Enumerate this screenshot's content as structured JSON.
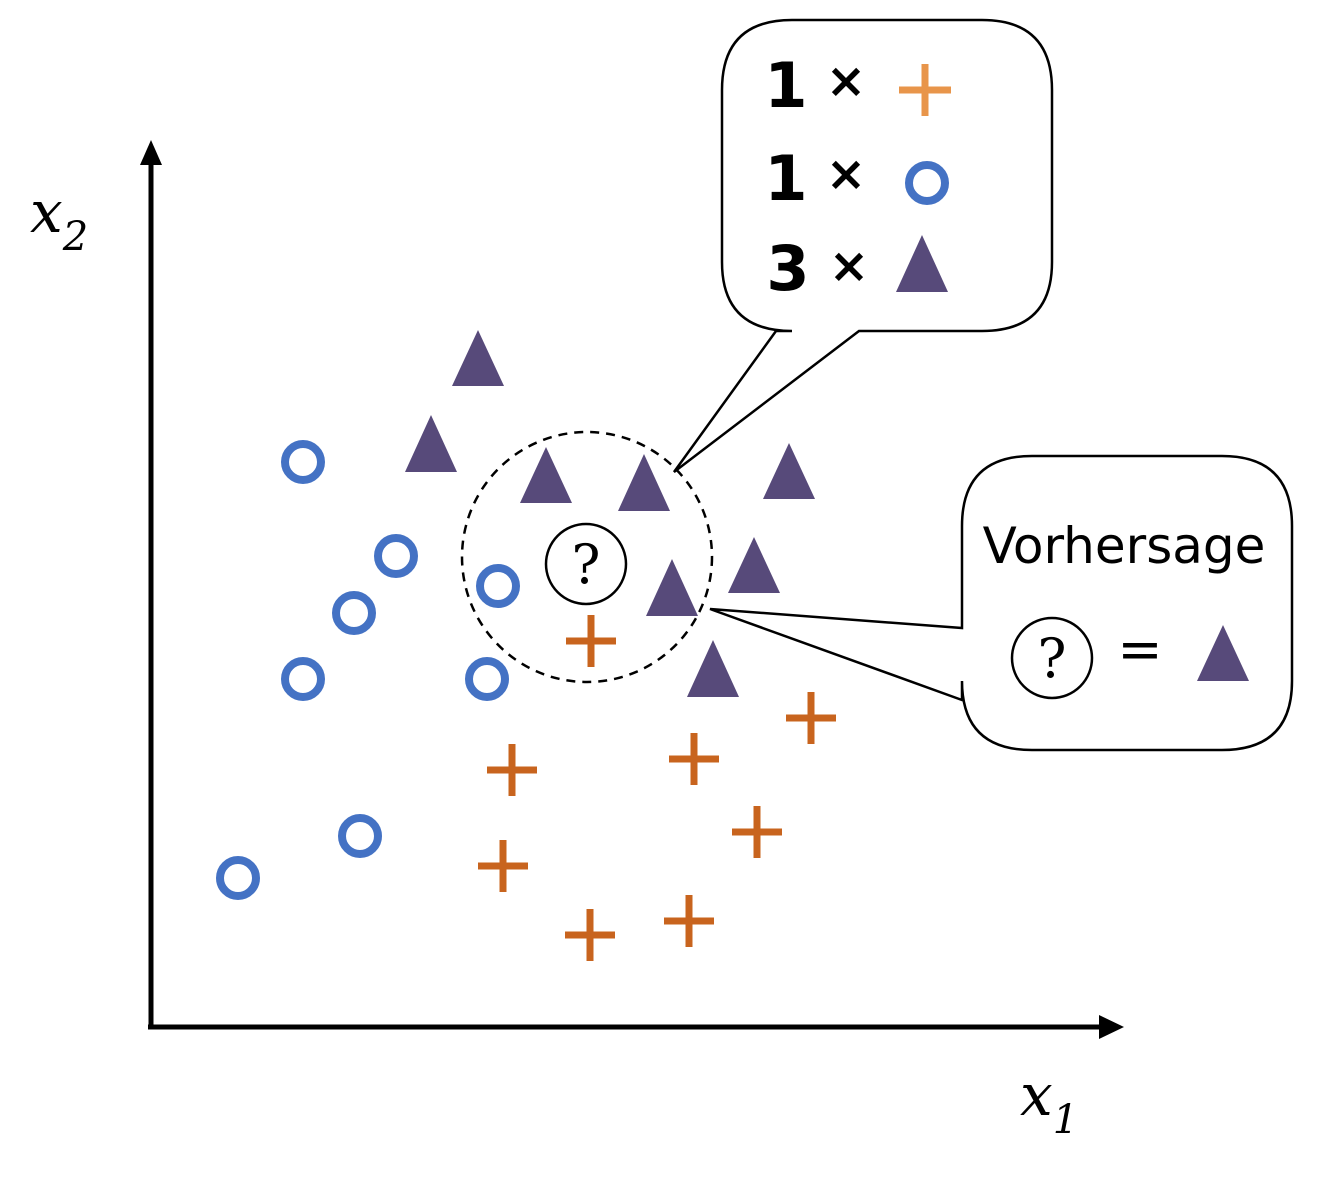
{
  "axes": {
    "x_label": "x",
    "x_sub": "1",
    "y_label": "x",
    "y_sub": "2"
  },
  "colors": {
    "circle": "#4472C4",
    "plus": "#C8641E",
    "plus_light": "#E8954A",
    "triangle": "#574A7A",
    "line": "#000000"
  },
  "classes": {
    "circle_icon": "circle-icon",
    "plus_icon": "plus-icon",
    "triangle_icon": "triangle-icon"
  },
  "query": {
    "symbol": "?"
  },
  "vote_box": {
    "rows": [
      {
        "count": "1",
        "times": "×",
        "class": "plus"
      },
      {
        "count": "1",
        "times": "×",
        "class": "circle"
      },
      {
        "count": "3",
        "times": "×",
        "class": "triangle"
      }
    ]
  },
  "prediction_box": {
    "title": "Vorhersage",
    "query_symbol": "?",
    "equals": "=",
    "result_class": "triangle"
  }
}
